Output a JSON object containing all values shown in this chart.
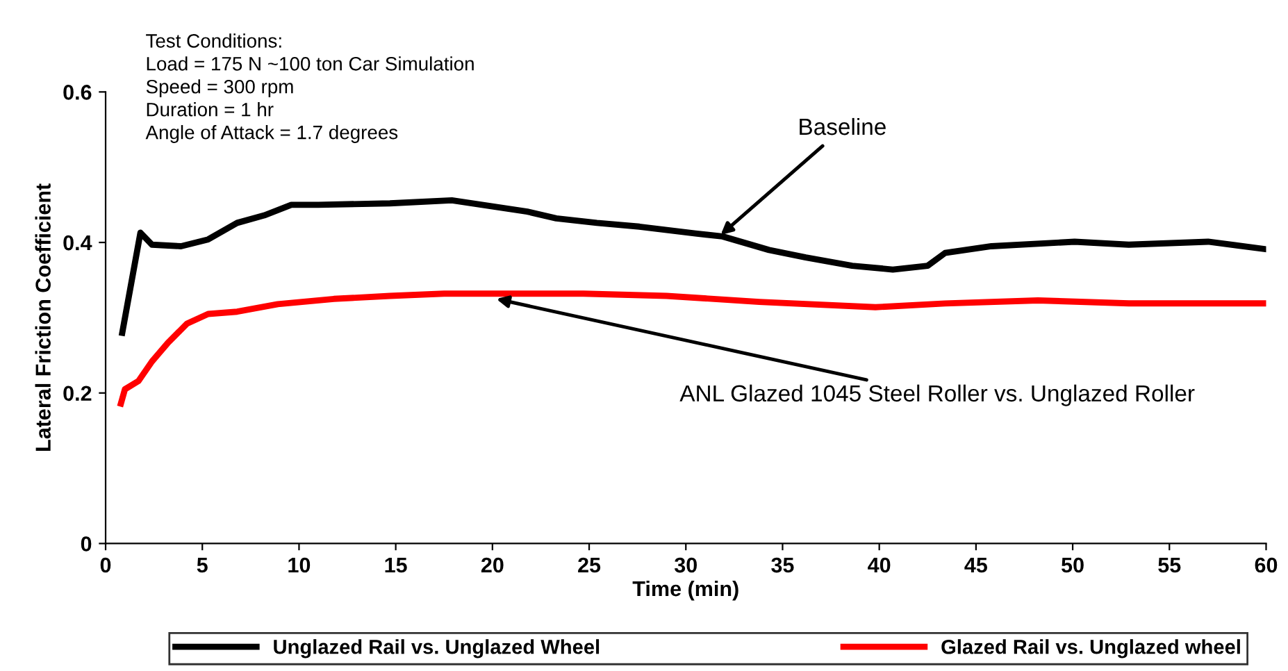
{
  "chart_data": {
    "type": "line",
    "xlabel": "Time (min)",
    "ylabel": "Lateral Friction Coefficient",
    "xlim": [
      0,
      60
    ],
    "xticks": [
      0,
      5,
      10,
      15,
      20,
      25,
      30,
      35,
      40,
      45,
      50,
      55,
      60
    ],
    "ylim": [
      0,
      0.6
    ],
    "yticks": [
      0,
      0.2,
      0.4,
      0.6
    ],
    "grid": false,
    "legend": "bottom",
    "marker": "none",
    "line_style": "solid",
    "series": [
      {
        "name": "Unglazed Rail vs. Unglazed Wheel",
        "color": "#000000",
        "x": [
          0.86,
          1.8,
          2.4,
          3.9,
          5.3,
          6.8,
          8.2,
          9.6,
          11,
          14.7,
          17.9,
          19.7,
          21.8,
          23.3,
          25.4,
          27.6,
          30.5,
          31.9,
          34.3,
          36.2,
          38.6,
          40.7,
          42.5,
          43.4,
          45.8,
          50.1,
          52.9,
          57,
          60
        ],
        "values": [
          0.28,
          0.413,
          0.397,
          0.395,
          0.404,
          0.426,
          0.436,
          0.45,
          0.45,
          0.452,
          0.456,
          0.449,
          0.441,
          0.432,
          0.426,
          0.421,
          0.412,
          0.408,
          0.39,
          0.38,
          0.369,
          0.364,
          0.369,
          0.386,
          0.395,
          0.401,
          0.397,
          0.401,
          0.391
        ]
      },
      {
        "name": "Glazed Rail vs. Unglazed wheel",
        "color": "#ff0000",
        "x": [
          0.79,
          1.0,
          1.7,
          2.4,
          3.2,
          4.2,
          5.3,
          6.8,
          8.9,
          11.8,
          14.7,
          17.5,
          20.4,
          24.7,
          29,
          33.8,
          39.8,
          43.4,
          48.2,
          52.9,
          60
        ],
        "values": [
          0.186,
          0.205,
          0.216,
          0.242,
          0.266,
          0.292,
          0.305,
          0.308,
          0.318,
          0.325,
          0.329,
          0.332,
          0.332,
          0.332,
          0.329,
          0.321,
          0.314,
          0.319,
          0.323,
          0.319,
          0.319
        ]
      }
    ],
    "annotations": [
      "Test Conditions:\nLoad = 175 N ~100 ton Car Simulation\nSpeed = 300 rpm\nDuration = 1 hr\nAngle of Attack = 1.7 degrees",
      {
        "text": "Baseline",
        "x": 31.8,
        "y": 0.41
      },
      {
        "text": "ANL Glazed 1045 Steel Roller vs. Unglazed Roller",
        "x": 20.2,
        "y": 0.325
      }
    ]
  }
}
